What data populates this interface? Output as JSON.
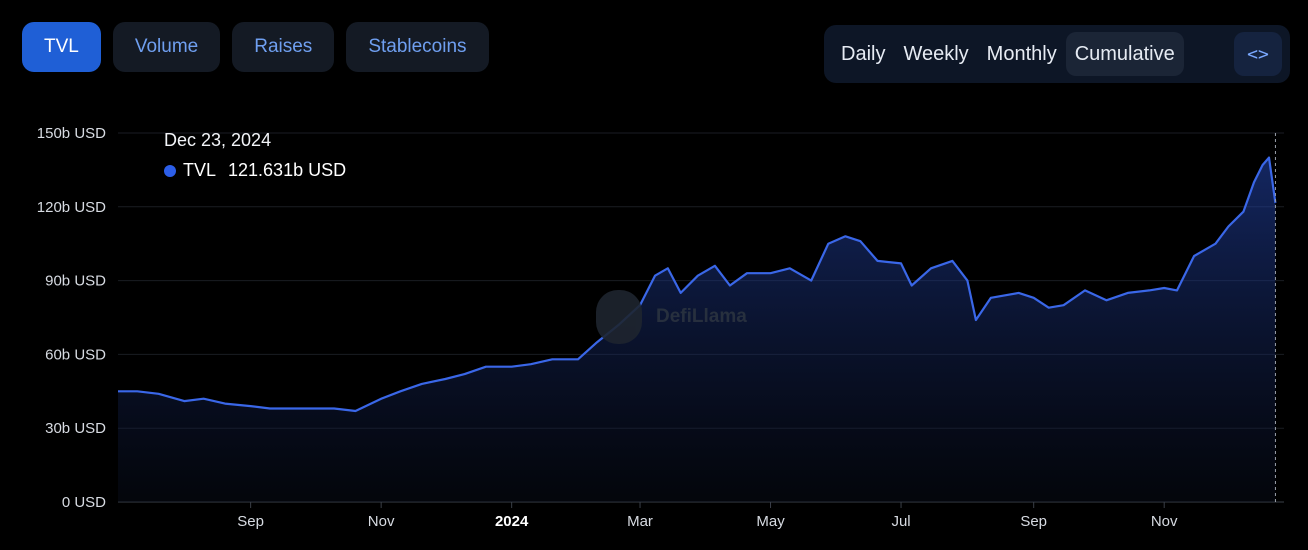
{
  "tabs": [
    "TVL",
    "Volume",
    "Raises",
    "Stablecoins"
  ],
  "active_tab": 0,
  "periods": [
    "Daily",
    "Weekly",
    "Monthly",
    "Cumulative"
  ],
  "active_period": 3,
  "embed_icon": "code-brackets-icon",
  "embed_label": "<>",
  "tooltip": {
    "date": "Dec 23, 2024",
    "series": "TVL",
    "value": "121.631b USD"
  },
  "watermark": "DefiLlama",
  "colors": {
    "accent": "#1f5fd6",
    "line": "#3a67e8",
    "background": "#000000"
  },
  "chart_data": {
    "type": "area",
    "ylim": [
      0,
      150
    ],
    "yticks": [
      0,
      30,
      60,
      90,
      120,
      150
    ],
    "ytick_labels": [
      "0 USD",
      "30b USD",
      "60b USD",
      "90b USD",
      "120b USD",
      "150b USD"
    ],
    "xlim": [
      "2023-07-01",
      "2024-12-27"
    ],
    "xticks": [
      "2023-09-01",
      "2023-11-01",
      "2024-01-01",
      "2024-03-01",
      "2024-05-01",
      "2024-07-01",
      "2024-09-01",
      "2024-11-01"
    ],
    "xtick_labels": [
      "Sep",
      "Nov",
      "2024",
      "Mar",
      "May",
      "Jul",
      "Sep",
      "Nov"
    ],
    "grid": true,
    "series": [
      {
        "name": "TVL",
        "x": [
          "2023-07-01",
          "2023-07-10",
          "2023-07-20",
          "2023-08-01",
          "2023-08-10",
          "2023-08-20",
          "2023-09-01",
          "2023-09-10",
          "2023-09-20",
          "2023-10-01",
          "2023-10-10",
          "2023-10-20",
          "2023-11-01",
          "2023-11-10",
          "2023-11-20",
          "2023-12-01",
          "2023-12-10",
          "2023-12-20",
          "2024-01-01",
          "2024-01-10",
          "2024-01-20",
          "2024-02-01",
          "2024-02-10",
          "2024-02-20",
          "2024-03-01",
          "2024-03-08",
          "2024-03-14",
          "2024-03-20",
          "2024-03-28",
          "2024-04-05",
          "2024-04-12",
          "2024-04-20",
          "2024-05-01",
          "2024-05-10",
          "2024-05-20",
          "2024-05-28",
          "2024-06-05",
          "2024-06-12",
          "2024-06-20",
          "2024-07-01",
          "2024-07-06",
          "2024-07-15",
          "2024-07-25",
          "2024-08-01",
          "2024-08-05",
          "2024-08-12",
          "2024-08-25",
          "2024-09-01",
          "2024-09-08",
          "2024-09-15",
          "2024-09-25",
          "2024-10-05",
          "2024-10-15",
          "2024-10-25",
          "2024-11-01",
          "2024-11-07",
          "2024-11-15",
          "2024-11-25",
          "2024-12-01",
          "2024-12-08",
          "2024-12-13",
          "2024-12-17",
          "2024-12-20",
          "2024-12-23"
        ],
        "values": [
          45,
          45,
          44,
          41,
          42,
          40,
          39,
          38,
          38,
          38,
          38,
          37,
          42,
          45,
          48,
          50,
          52,
          55,
          55,
          56,
          58,
          58,
          65,
          72,
          80,
          92,
          95,
          85,
          92,
          96,
          88,
          93,
          93,
          95,
          90,
          105,
          108,
          106,
          98,
          97,
          88,
          95,
          98,
          90,
          74,
          83,
          85,
          83,
          79,
          80,
          86,
          82,
          85,
          86,
          87,
          86,
          100,
          105,
          112,
          118,
          130,
          137,
          140,
          121.6
        ]
      }
    ]
  }
}
